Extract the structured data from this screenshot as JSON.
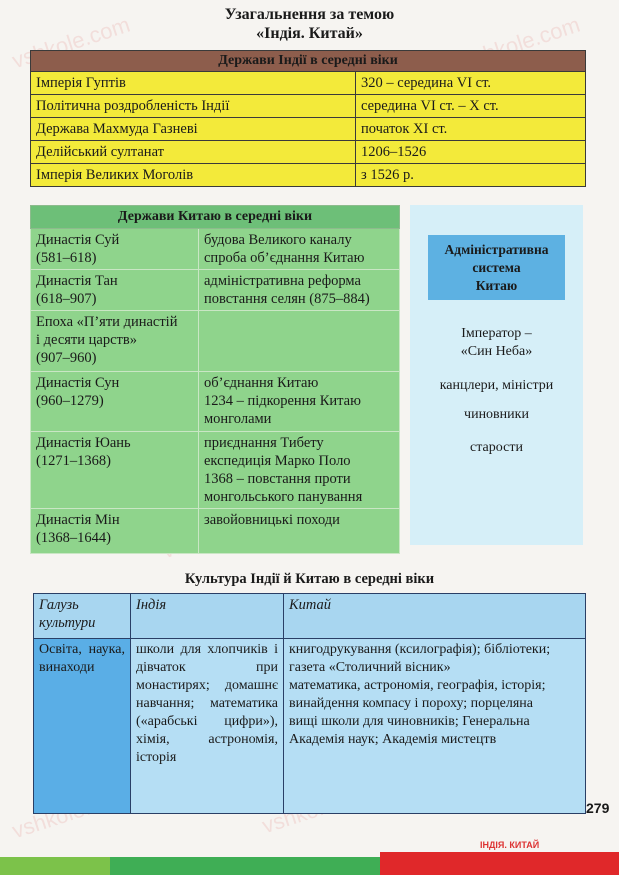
{
  "title": {
    "line1": "Узагальнення за темою",
    "line2": "«Індія. Китай»"
  },
  "india_table": {
    "header": "Держави Індії в середні віки",
    "rows": [
      {
        "name": "Імперія Гуптів",
        "period": "320 – середина VI ст."
      },
      {
        "name": "Політична роздробленість Індії",
        "period": "середина VI ст. – X ст."
      },
      {
        "name": "Держава Махмуда Газневі",
        "period": "початок XI ст."
      },
      {
        "name": "Делійський султанат",
        "period": "1206–1526"
      },
      {
        "name": "Імперія Великих Моголів",
        "period": "з 1526 р."
      }
    ]
  },
  "china_table": {
    "header": "Держави Китаю в середні віки",
    "rows": [
      {
        "dynasty": [
          "Династія Суй",
          "(581–618)"
        ],
        "events": [
          "будова Великого каналу",
          "спроба об’єднання Китаю"
        ]
      },
      {
        "dynasty": [
          "Династія Тан",
          "(618–907)"
        ],
        "events": [
          "адміністративна реформа",
          "повстання селян (875–884)"
        ]
      },
      {
        "dynasty": [
          "Епоха «П’яти династій",
          "і десяти царств»",
          "(907–960)"
        ],
        "events": []
      },
      {
        "dynasty": [
          "Династія Сун",
          "(960–1279)"
        ],
        "events": [
          "об’єднання Китаю",
          "1234 – підкорення Китаю",
          "монголами"
        ]
      },
      {
        "dynasty": [
          "Династія Юань",
          "(1271–1368)"
        ],
        "events": [
          "приєднання Тибету",
          "експедиція Марко Поло",
          "1368 – повстання проти",
          "монгольського панування"
        ]
      },
      {
        "dynasty": [
          "Династія Мін",
          "(1368–1644)"
        ],
        "events": [
          "завойовницькі походи"
        ]
      }
    ]
  },
  "admin_system": {
    "header": [
      "Адміністративна",
      "система",
      "Китаю"
    ],
    "levels": [
      "Імператор –",
      "«Син Неба»",
      "канцлери, міністри",
      "чиновники",
      "старости"
    ]
  },
  "culture_table": {
    "title": "Культура Індії й Китаю в середні віки",
    "headers": [
      "Галузь культури",
      "Індія",
      "Китай"
    ],
    "rows": [
      {
        "field": "Освіта, наука, винаходи",
        "india": "школи для хлопчиків і дівчаток при монастирях; домашнє навчання; математика («арабські цифри»), хімія, астрономія, історія",
        "china": [
          "книгодрукування (ксилографія); бібліотеки; газета «Столичний вісник»",
          "математика, астрономія, географія, історія; винайдення компасу і пороху; порцеляна",
          "вищі школи для чиновників; Генеральна Академія наук; Академія мистецтв"
        ]
      }
    ]
  },
  "footer": {
    "page_number": "279",
    "running_title": "ІНДІЯ. КИТАЙ"
  },
  "watermark": "vshkole.com",
  "colors": {
    "india_header": "#8d5d4c",
    "india_rows": "#f3ea3a",
    "china": "#8fd48c",
    "admin_bg": "#d6eff8",
    "admin_header": "#5db1e2",
    "culture": "#b5def4",
    "footer_red": "#e0282a",
    "footer_green": "#3fae55"
  }
}
